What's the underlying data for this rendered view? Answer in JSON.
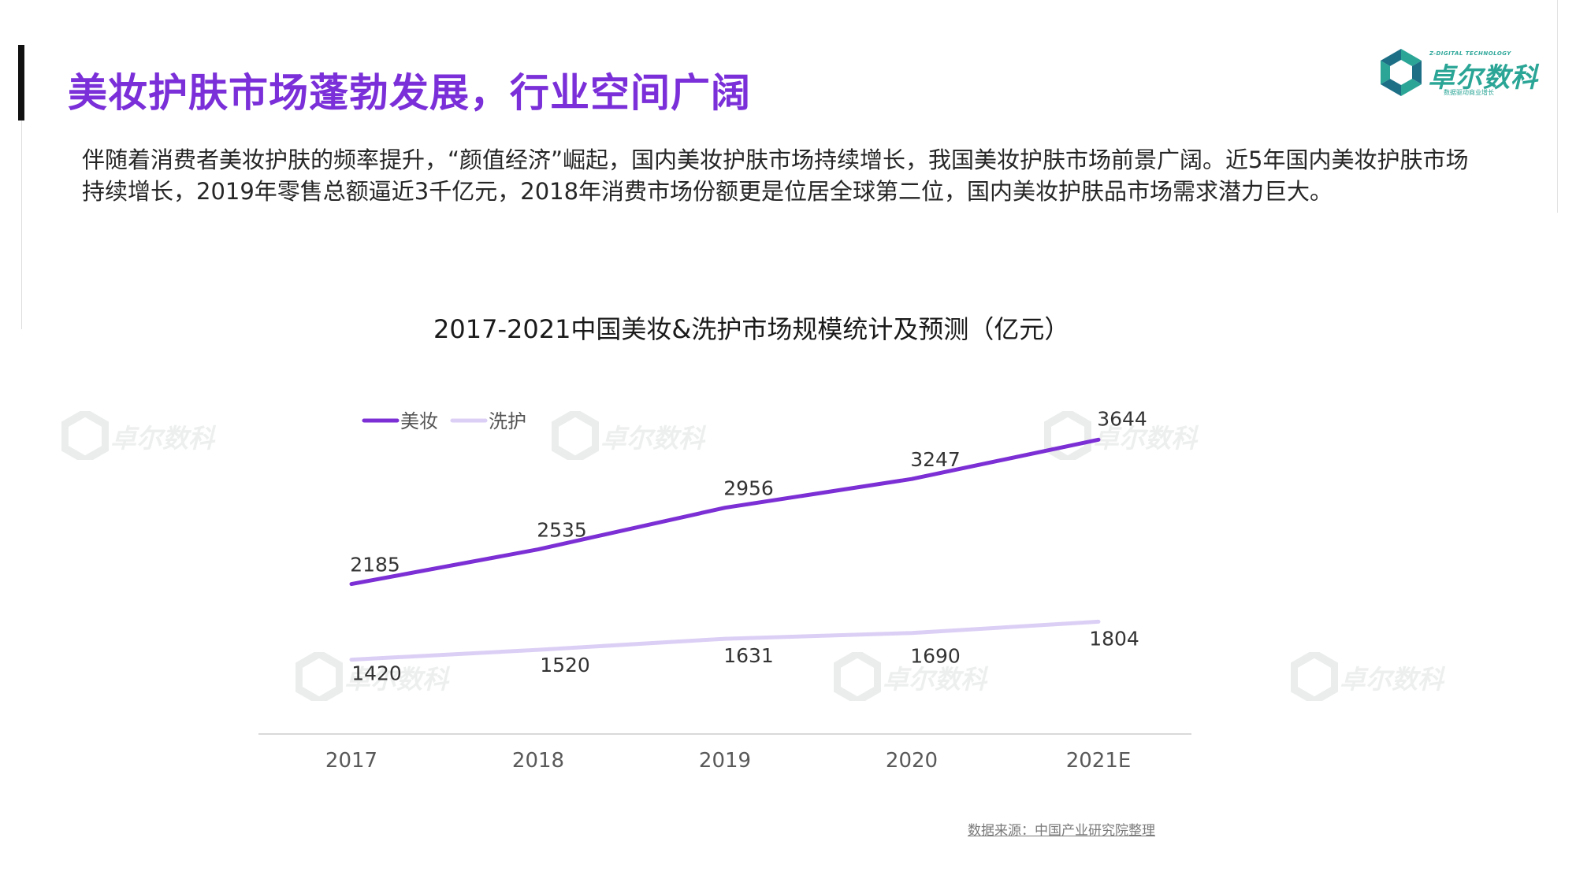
{
  "page": {
    "title": "美妆护肤市场蓬勃发展，行业空间广阔",
    "intro": "伴随着消费者美妆护肤的频率提升，“颜值经济”崛起，国内美妆护肤市场持续增长，我国美妆护肤市场前景广阔。近5年国内美妆护肤市场持续增长，2019年零售总额逼近3千亿元，2018年消费市场份额更是位居全球第二位，国内美妆护肤品市场需求潜力巨大。",
    "source": "数据来源：中国产业研究院整理"
  },
  "logo": {
    "name": "卓尔数科",
    "subtitle": "Z-DIGITAL TECHNOLOGY",
    "tagline": "数据驱动商业增长",
    "colors": {
      "primary": "#2aa596",
      "dark": "#1d6f86"
    }
  },
  "colors": {
    "title": "#7a2fd8",
    "series_makeup": "#7b2fd4",
    "series_care": "#dccff5",
    "axis": "#d9d9d9"
  },
  "chart_data": {
    "type": "line",
    "title": "2017-2021中国美妆&洗护市场规模统计及预测（亿元）",
    "categories": [
      "2017",
      "2018",
      "2019",
      "2020",
      "2021E"
    ],
    "series": [
      {
        "name": "美妆",
        "values": [
          2185,
          2535,
          2956,
          3247,
          3644
        ]
      },
      {
        "name": "洗护",
        "values": [
          1420,
          1520,
          1631,
          1690,
          1804
        ]
      }
    ],
    "xlabel": "",
    "ylabel": "",
    "legend": "top-left",
    "grid": false,
    "data_labels": true
  }
}
